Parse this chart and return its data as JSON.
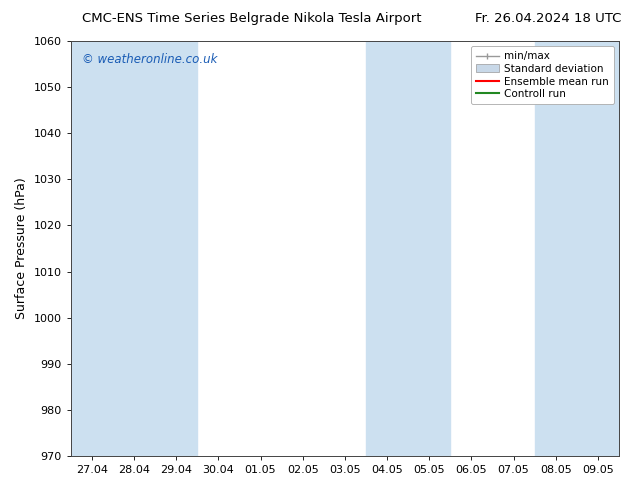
{
  "title_left": "CMC-ENS Time Series Belgrade Nikola Tesla Airport",
  "title_right": "Fr. 26.04.2024 18 UTC",
  "ylabel": "Surface Pressure (hPa)",
  "ylim": [
    970,
    1060
  ],
  "yticks": [
    970,
    980,
    990,
    1000,
    1010,
    1020,
    1030,
    1040,
    1050,
    1060
  ],
  "x_labels": [
    "27.04",
    "28.04",
    "29.04",
    "30.04",
    "01.05",
    "02.05",
    "03.05",
    "04.05",
    "05.05",
    "06.05",
    "07.05",
    "08.05",
    "09.05"
  ],
  "watermark": "© weatheronline.co.uk",
  "watermark_color": "#1a5cb5",
  "bg_color": "#ffffff",
  "plot_bg_color": "#ffffff",
  "shaded_band_color": "#cce0f0",
  "shaded_band_alpha": 1.0,
  "shaded_columns": [
    0,
    1,
    2,
    7,
    8,
    11,
    12
  ],
  "legend_entries": [
    "min/max",
    "Standard deviation",
    "Ensemble mean run",
    "Controll run"
  ],
  "title_fontsize": 9.5,
  "tick_fontsize": 8,
  "label_fontsize": 9,
  "n_points": 13
}
